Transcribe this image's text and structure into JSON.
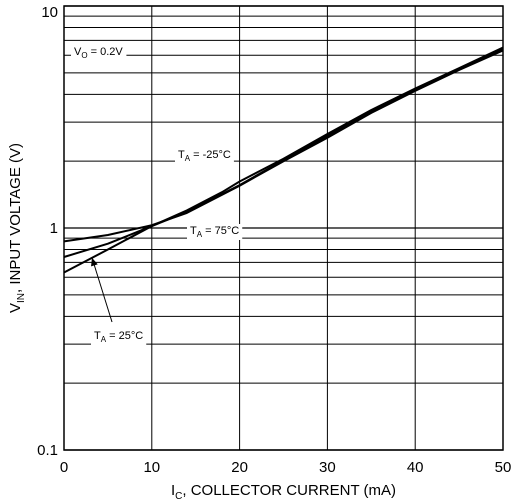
{
  "chart_data": {
    "type": "line",
    "title": "",
    "x_axis": {
      "label_main": "I",
      "label_sub": "C",
      "label_rest": ", COLLECTOR CURRENT (mA)",
      "range": [
        0,
        50
      ],
      "ticks": [
        "0",
        "10",
        "20",
        "30",
        "40",
        "50"
      ],
      "tick_values": [
        0,
        10,
        20,
        30,
        40,
        50
      ]
    },
    "y_axis": {
      "label_main": "V",
      "label_sub": "IN",
      "label_rest": ", INPUT VOLTAGE (V)",
      "scale": "log",
      "range": [
        0.1,
        10
      ],
      "ticks": [
        "0.1",
        "1",
        "10"
      ],
      "tick_values": [
        0.1,
        1,
        10
      ]
    },
    "grid": true,
    "series": [
      {
        "name_main": "T",
        "name_sub": "A",
        "name_rest": " = -25°C",
        "x": [
          0,
          5,
          10,
          14,
          18,
          20,
          25,
          30,
          35,
          40,
          45,
          50
        ],
        "y": [
          0.63,
          0.8,
          1.02,
          1.2,
          1.45,
          1.62,
          2.05,
          2.65,
          3.4,
          4.25,
          5.25,
          6.5
        ]
      },
      {
        "name_main": "T",
        "name_sub": "A",
        "name_rest": " = 75°C",
        "x": [
          0,
          5,
          10,
          14,
          20,
          25,
          30,
          35,
          40,
          45,
          50
        ],
        "y": [
          0.87,
          0.93,
          1.03,
          1.17,
          1.55,
          2.0,
          2.55,
          3.3,
          4.15,
          5.15,
          6.3
        ]
      },
      {
        "name_main": "T",
        "name_sub": "A",
        "name_rest": " = 25°C",
        "x": [
          0,
          5,
          10,
          14,
          20,
          25,
          30,
          35,
          40,
          45,
          50
        ],
        "y": [
          0.74,
          0.85,
          1.02,
          1.18,
          1.56,
          2.02,
          2.6,
          3.35,
          4.2,
          5.2,
          6.4
        ]
      }
    ],
    "annotations": [
      {
        "main": "V",
        "sub": "O",
        "rest": " = 0.2V"
      }
    ]
  }
}
